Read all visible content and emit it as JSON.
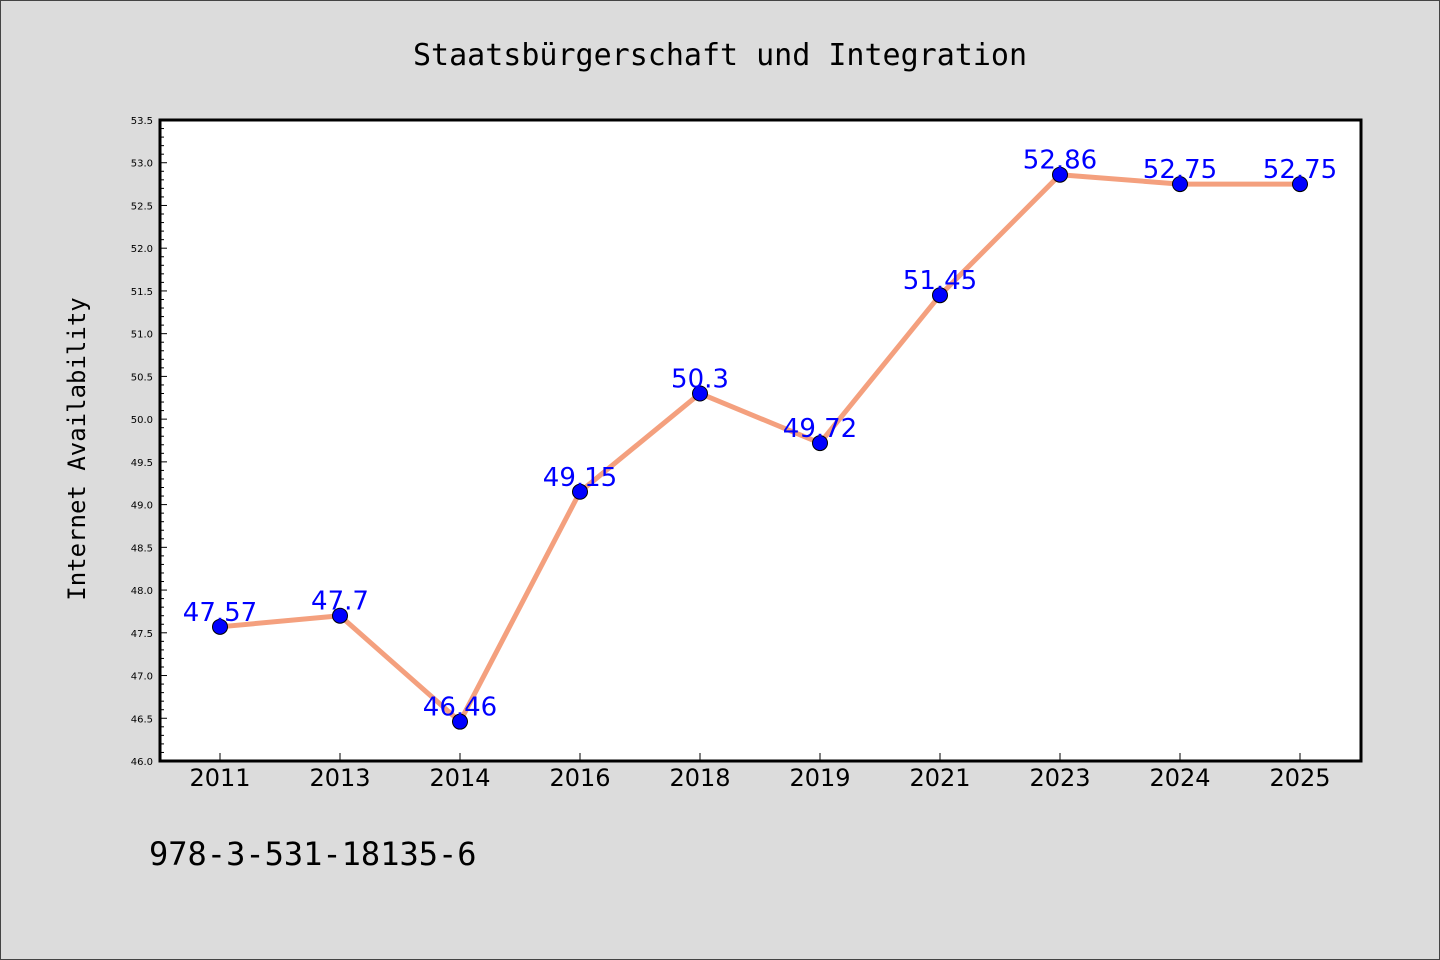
{
  "chart_data": {
    "type": "line",
    "title": "Staatsbürgerschaft und Integration",
    "xlabel": "",
    "ylabel": "Internet Availability",
    "categories": [
      "2011",
      "2013",
      "2014",
      "2016",
      "2018",
      "2019",
      "2021",
      "2023",
      "2024",
      "2025"
    ],
    "series": [
      {
        "values": [
          47.57,
          47.7,
          46.46,
          49.15,
          50.3,
          49.72,
          51.45,
          52.86,
          52.75,
          52.75
        ],
        "labels": [
          "47.57",
          "47.7",
          "46.46",
          "49.15",
          "50.3",
          "49.72",
          "51.45",
          "52.86",
          "52.75",
          "52.75"
        ],
        "line_color": "#f4a07e",
        "marker_color": "#0000ff"
      }
    ],
    "ylim": [
      46.0,
      53.5
    ],
    "yticks": [
      "46.0",
      "46.5",
      "47.0",
      "47.5",
      "48.0",
      "48.5",
      "49.0",
      "49.5",
      "50.0",
      "50.5",
      "51.0",
      "51.5",
      "52.0",
      "52.5",
      "53.0",
      "53.5"
    ],
    "grid": false,
    "legend": "none"
  },
  "footer": {
    "isbn": "978-3-531-18135-6"
  },
  "colors": {
    "background": "#dcdcdc",
    "plot_background": "#ffffff",
    "line": "#f4a07e",
    "marker": "#0000ff",
    "label": "#0000ff"
  }
}
